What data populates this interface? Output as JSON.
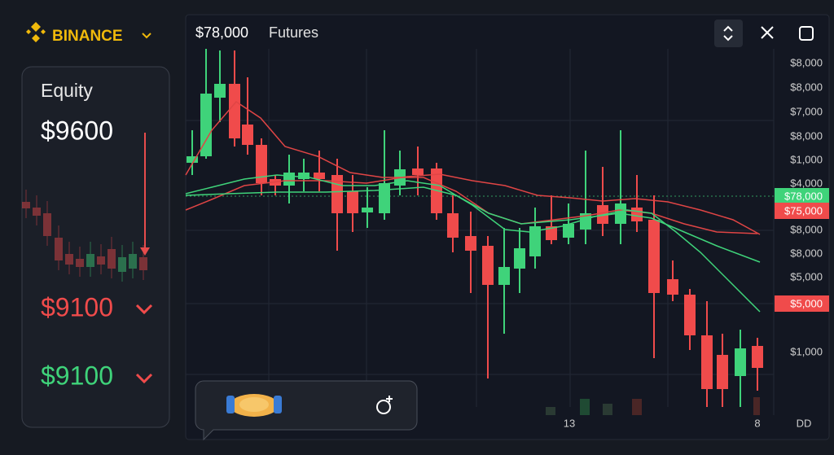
{
  "brand": "BINANCE",
  "equity": {
    "label": "Equity",
    "value": "$9600"
  },
  "prices": [
    "$9100",
    "$9100"
  ],
  "chart": {
    "price": "$78,000",
    "label": "Futures",
    "y_axis_labels": [
      "$8,000",
      "$8,000",
      "$7,000",
      "$8,000",
      "$1,000",
      "$4,000",
      "$8,000",
      "$8,000",
      "$5,000",
      "$1,000"
    ],
    "tags": [
      "$78,000",
      "$75,000",
      "$5,000"
    ],
    "x_axis_labels": [
      "13",
      "8",
      "DD"
    ]
  }
}
